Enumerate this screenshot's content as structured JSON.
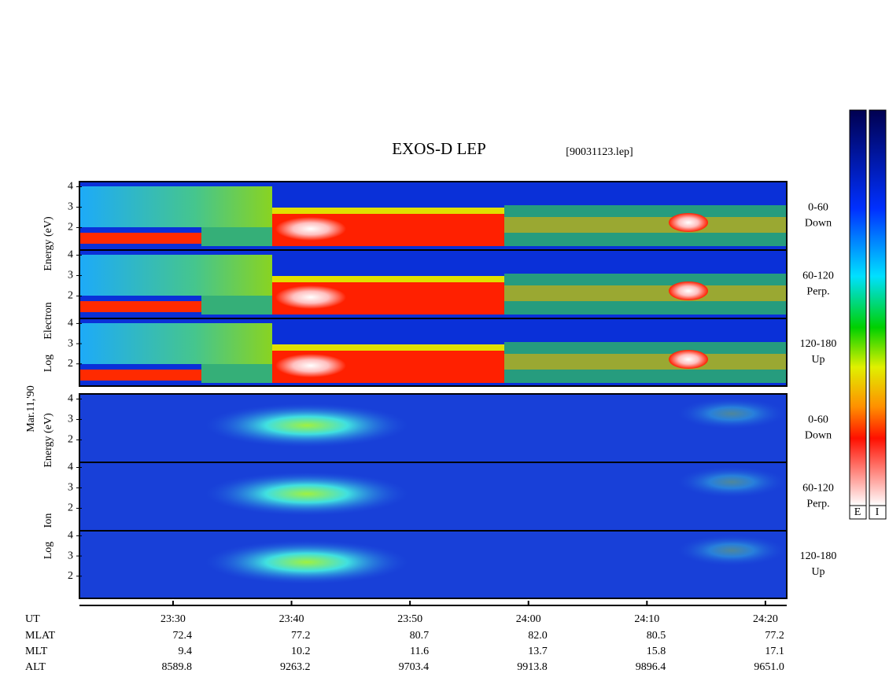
{
  "title": "EXOS-D LEP",
  "file": "[90031123.lep]",
  "date": "Mar.11,'90",
  "yaxis": {
    "ylim": [
      0.9,
      4.25
    ],
    "yticks": [
      2,
      3,
      4
    ]
  },
  "groups": [
    {
      "ylabel": [
        "Log",
        "Electron",
        "Energy (eV)"
      ],
      "panels": [
        {
          "range": "0-60",
          "dir": "Down"
        },
        {
          "range": "60-120",
          "dir": "Perp."
        },
        {
          "range": "120-180",
          "dir": "Up"
        }
      ]
    },
    {
      "ylabel": [
        "Log",
        "Ion",
        "Energy (eV)"
      ],
      "panels": [
        {
          "range": "0-60",
          "dir": "Down"
        },
        {
          "range": "60-120",
          "dir": "Perp."
        },
        {
          "range": "120-180",
          "dir": "Up"
        }
      ]
    }
  ],
  "xaxis": {
    "xlim": [
      1402.1,
      1461.8
    ],
    "xticks": [
      {
        "value": 1410,
        "label": "23:30"
      },
      {
        "value": 1420,
        "label": "23:40"
      },
      {
        "value": 1430,
        "label": "23:50"
      },
      {
        "value": 1440,
        "label": "24:00"
      },
      {
        "value": 1450,
        "label": "24:10"
      },
      {
        "value": 1460,
        "label": "24:20"
      }
    ]
  },
  "table": {
    "ut": "UT",
    "rows": [
      {
        "label": "MLAT",
        "values": [
          "72.4",
          "77.2",
          "80.7",
          "82.0",
          "80.5",
          "77.2"
        ]
      },
      {
        "label": "MLT",
        "values": [
          "9.4",
          "10.2",
          "11.6",
          "13.7",
          "15.8",
          "17.1"
        ]
      },
      {
        "label": "ALT",
        "values": [
          "8589.8",
          "9263.2",
          "9703.4",
          "9913.8",
          "9896.4",
          "9651.0"
        ]
      }
    ]
  },
  "colorbar": {
    "labels": [
      "E",
      "I"
    ]
  }
}
